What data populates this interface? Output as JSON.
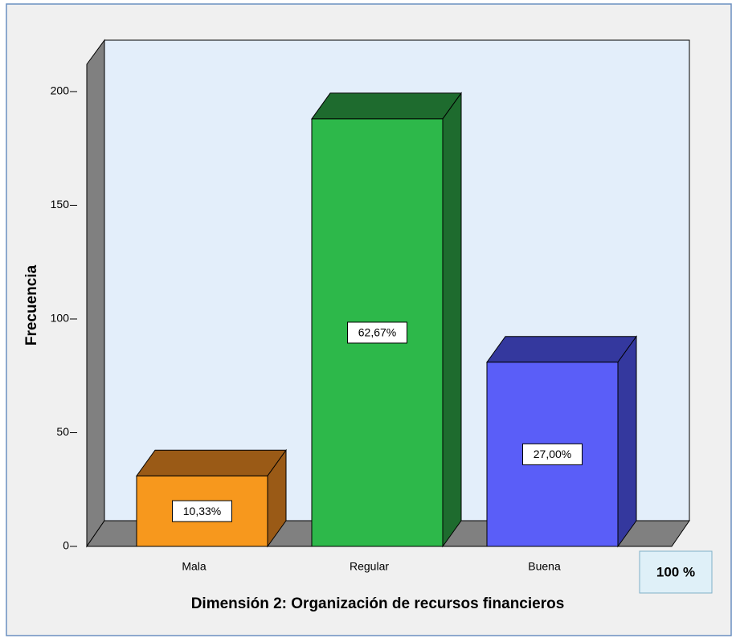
{
  "chart_data": {
    "type": "bar3d",
    "xlabel": "Dimensión 2: Organización de recursos financieros",
    "ylabel": "Frecuencia",
    "categories": [
      "Mala",
      "Regular",
      "Buena"
    ],
    "values": [
      31,
      188,
      81
    ],
    "percentages": [
      {
        "value": 10.33,
        "label": "10,33%"
      },
      {
        "value": 62.67,
        "label": "62,67%"
      },
      {
        "value": 27.0,
        "label": "27,00%"
      }
    ],
    "colors": [
      "#f7981d",
      "#2db84a",
      "#5a5ef8"
    ],
    "side_colors": [
      "#9a5a16",
      "#1e6b2e",
      "#34389e"
    ],
    "ylim": [
      0,
      212
    ],
    "yticks": [
      0,
      50,
      100,
      150,
      200
    ],
    "total": {
      "value": 100,
      "label": "100 %"
    }
  }
}
